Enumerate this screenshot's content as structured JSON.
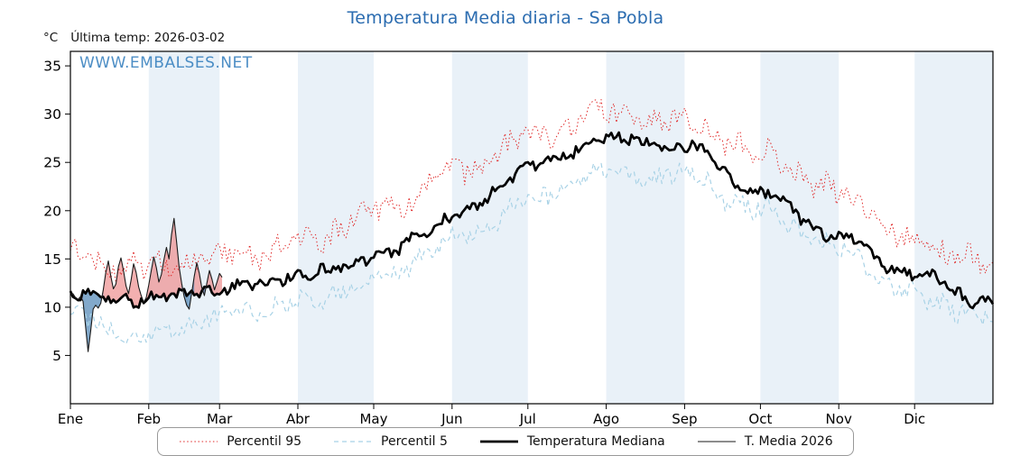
{
  "chart_data": {
    "type": "line",
    "title": "Temperatura Media diaria - Sa Pobla",
    "ylabel": "°C",
    "annotation": "Última temp: 2026-03-02",
    "watermark": "WWW.EMBALSES.NET",
    "x_tick_labels": [
      "Ene",
      "Feb",
      "Mar",
      "Abr",
      "May",
      "Jun",
      "Jul",
      "Ago",
      "Sep",
      "Oct",
      "Nov",
      "Dic"
    ],
    "y_ticks": [
      5,
      10,
      15,
      20,
      25,
      30,
      35
    ],
    "ylim": [
      0,
      36.5
    ],
    "month_start_days": [
      0,
      31,
      59,
      90,
      120,
      151,
      181,
      212,
      243,
      273,
      304,
      334,
      365
    ],
    "band_color": "#e9f1f8",
    "colors": {
      "title": "#2b6cb0",
      "watermark": "#2e7bbc",
      "axis": "#000000"
    },
    "fills": {
      "above_color": "#ee8f8f",
      "below_color": "#4d85b5"
    },
    "series": [
      {
        "key": "percentil-95",
        "name": "Percentil 95",
        "color": "#e02828",
        "width": 1,
        "dash": "1.5 2.6",
        "anchors_monthly": [
          15.3,
          14.0,
          15.2,
          16.6,
          20.0,
          24.0,
          27.5,
          30.0,
          29.0,
          25.8,
          21.7,
          16.6,
          14.3
        ],
        "noise_amp": 1.15,
        "seed": 7
      },
      {
        "key": "percentil-5",
        "name": "Percentil 5",
        "color": "#a8d2e6",
        "width": 1.2,
        "dash": "5 4",
        "anchors_monthly": [
          9.1,
          7.0,
          9.0,
          10.5,
          12.9,
          17.1,
          21.1,
          24.1,
          23.6,
          19.9,
          15.9,
          11.0,
          8.8
        ],
        "noise_amp": 0.95,
        "seed": 13
      },
      {
        "key": "temperatura-mediana",
        "name": "Temperatura Mediana",
        "color": "#000000",
        "width": 2.7,
        "dash": "",
        "anchors_monthly": [
          11.3,
          10.8,
          11.9,
          13.2,
          15.2,
          19.4,
          24.5,
          27.5,
          26.6,
          21.7,
          17.1,
          13.3,
          10.3
        ],
        "noise_amp": 0.55,
        "seed": 3
      },
      {
        "key": "t-media-2026",
        "name": "T. Media 2026",
        "color": "#1a1a1a",
        "width": 1.1,
        "dash": "",
        "daily_values": [
          11.2,
          11.4,
          11.0,
          10.8,
          11.1,
          10.6,
          8.0,
          5.4,
          7.5,
          9.8,
          10.2,
          9.9,
          10.4,
          11.8,
          13.6,
          14.8,
          13.2,
          11.9,
          12.4,
          14.2,
          15.1,
          13.8,
          12.2,
          11.4,
          12.8,
          14.5,
          13.6,
          12.1,
          11.2,
          10.5,
          11.0,
          12.3,
          13.8,
          15.2,
          14.1,
          12.6,
          13.4,
          14.9,
          16.2,
          15.0,
          17.5,
          19.2,
          16.8,
          14.2,
          12.5,
          11.1,
          10.2,
          9.8,
          11.5,
          13.2,
          14.6,
          13.5,
          12.0,
          11.2,
          12.5,
          13.8,
          12.9,
          11.8,
          12.6,
          13.5,
          13.1
        ]
      }
    ]
  }
}
